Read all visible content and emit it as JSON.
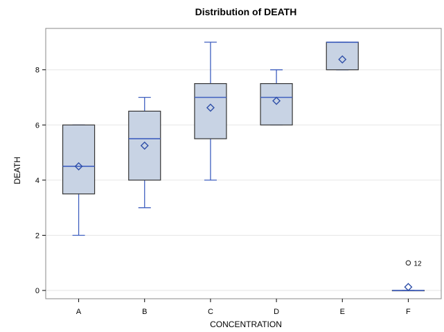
{
  "chart_data": {
    "type": "box",
    "title": "Distribution of DEATH",
    "xlabel": "CONCENTRATION",
    "ylabel": "DEATH",
    "ylim": [
      -0.3,
      9.5
    ],
    "yticks": [
      0,
      2,
      4,
      6,
      8
    ],
    "grid": true,
    "colors": {
      "box_fill": "#c8d3e4",
      "box_edge": "#333333",
      "median": "#3f5fbf",
      "whisker": "#3f5fbf",
      "mean_marker": "#2f4fa8",
      "grid": "#e6e6e6",
      "frame": "#888888"
    },
    "categories": [
      "A",
      "B",
      "C",
      "D",
      "E",
      "F"
    ],
    "boxes": [
      {
        "category": "A",
        "min": 2,
        "q1": 3.5,
        "median": 4.5,
        "q3": 6,
        "max": 6,
        "mean": 4.5
      },
      {
        "category": "B",
        "min": 3,
        "q1": 4,
        "median": 5.5,
        "q3": 6.5,
        "max": 7,
        "mean": 5.25
      },
      {
        "category": "C",
        "min": 4,
        "q1": 5.5,
        "median": 7,
        "q3": 7.5,
        "max": 9,
        "mean": 6.625
      },
      {
        "category": "D",
        "min": 6,
        "q1": 6,
        "median": 7,
        "q3": 7.5,
        "max": 8,
        "mean": 6.875
      },
      {
        "category": "E",
        "min": 8,
        "q1": 8,
        "median": 9,
        "q3": 9,
        "max": 9,
        "mean": 8.375
      },
      {
        "category": "F",
        "min": 0,
        "q1": 0,
        "median": 0,
        "q3": 0,
        "max": 0,
        "mean": 0.125
      }
    ],
    "outliers": [
      {
        "category": "F",
        "value": 1,
        "label": "12"
      }
    ]
  }
}
